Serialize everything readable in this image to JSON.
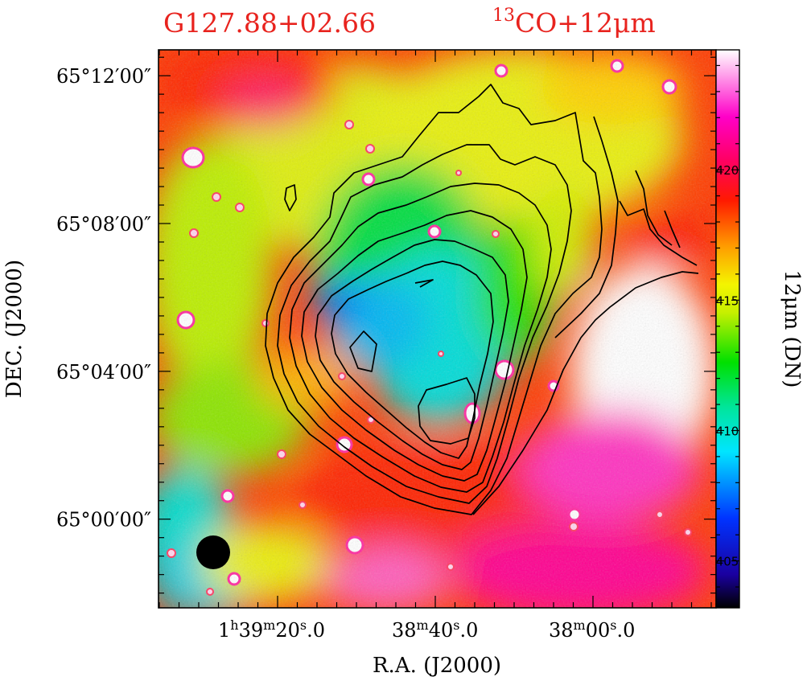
{
  "chart_data": {
    "type": "heatmap",
    "title_source": "G127.88+02.66",
    "title_tracer_sup": "13",
    "title_tracer": "CO+12μm",
    "xlabel": "R.A. (J2000)",
    "ylabel": "DEC. (J2000)",
    "colorbar_label": "12μm (DN)",
    "x_ticks": [
      {
        "h": "1",
        "m": "39",
        "s": "20",
        "frac": "0"
      },
      {
        "h": "",
        "m": "38",
        "s": "40",
        "frac": "0"
      },
      {
        "h": "",
        "m": "38",
        "s": "00",
        "frac": "0"
      }
    ],
    "y_ticks": [
      {
        "label": "65°12′00″",
        "dec_arcmin": 12
      },
      {
        "label": "65°08′00″",
        "dec_arcmin": 8
      },
      {
        "label": "65°04′00″",
        "dec_arcmin": 4
      },
      {
        "label": "65°00′00″",
        "dec_arcmin": 0
      }
    ],
    "ylim_arcmin": [
      -2.4,
      12.7
    ],
    "colorbar_ticks": [
      "405",
      "410",
      "415",
      "420"
    ],
    "colorbar_range_DN": [
      403.2,
      424.6
    ],
    "colormap": [
      "#000000",
      "#0033ff",
      "#00e5ff",
      "#00e000",
      "#f4f400",
      "#ff9900",
      "#ff1a00",
      "#ff00c8",
      "#ffffff"
    ],
    "beam": "filled circle, bottom-left",
    "contour_levels": 9
  }
}
